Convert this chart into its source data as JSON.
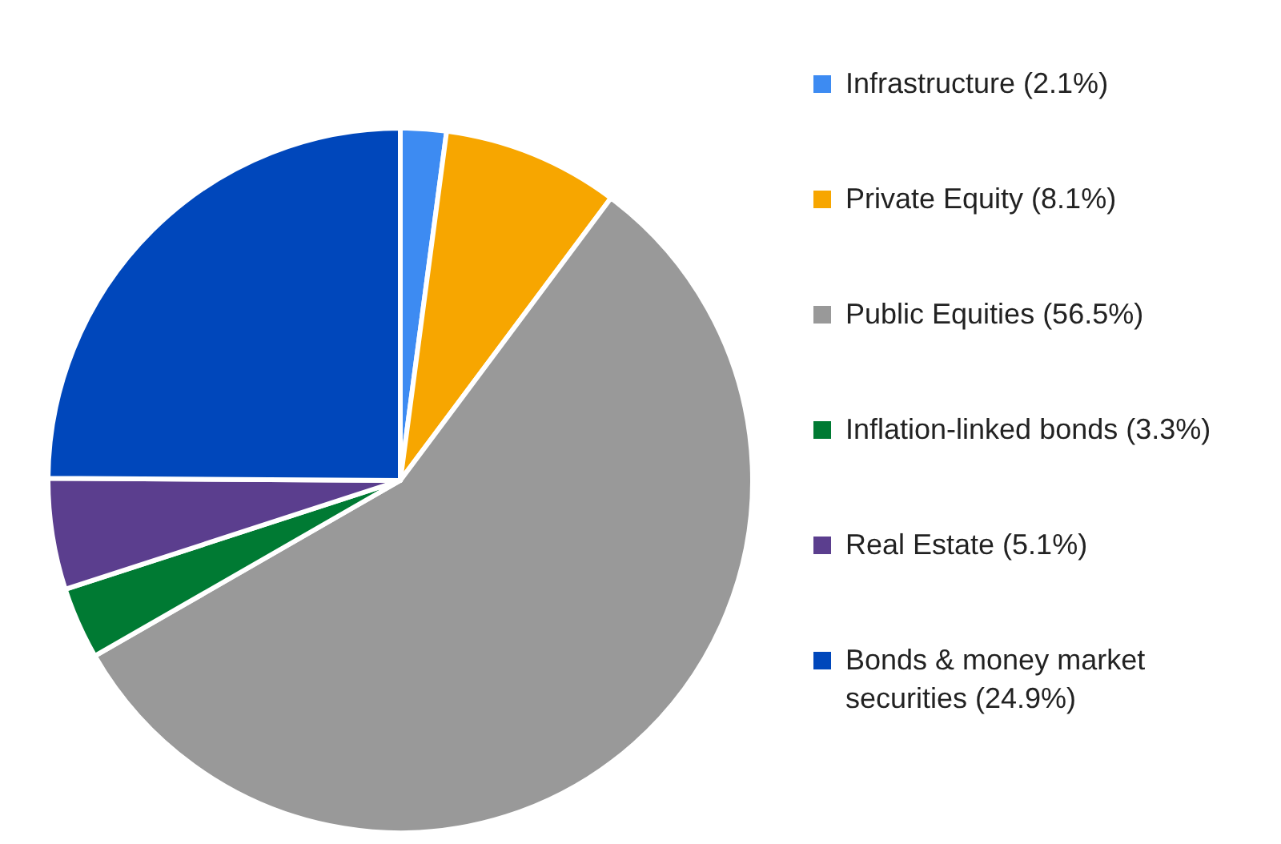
{
  "chart_data": {
    "type": "pie",
    "categories": [
      "Infrastructure (2.1%)",
      "Private Equity (8.1%)",
      "Public Equities (56.5%)",
      "Inflation-linked bonds (3.3%)",
      "Real Estate (5.1%)",
      "Bonds & money market securities (24.9%)"
    ],
    "values": [
      2.1,
      8.1,
      56.5,
      3.3,
      5.1,
      24.9
    ],
    "colors": [
      "#3d8bf2",
      "#f7a600",
      "#999999",
      "#007a33",
      "#5b3e8e",
      "#0047bb"
    ],
    "legend": "right"
  }
}
